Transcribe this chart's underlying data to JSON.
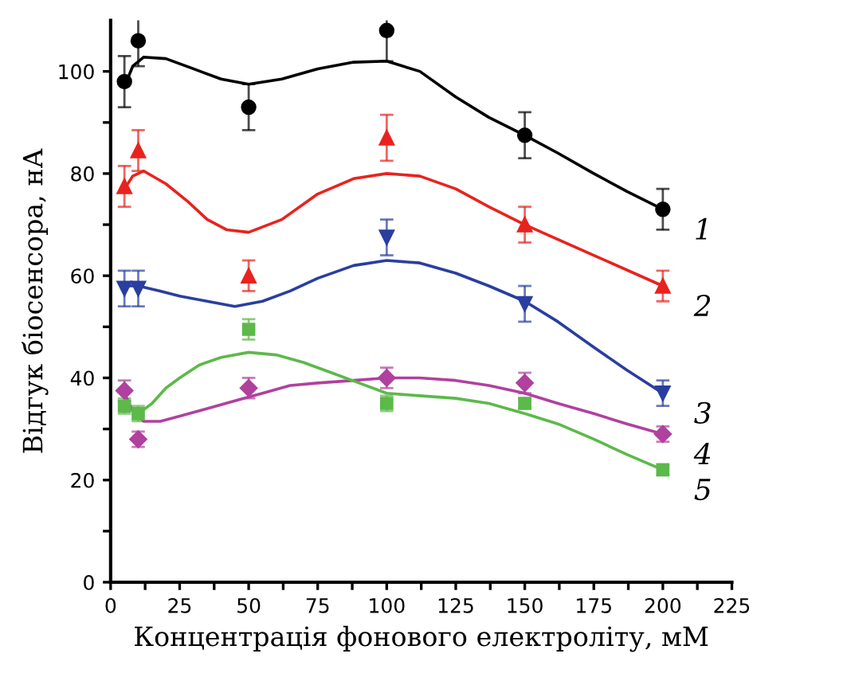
{
  "chart_data": {
    "type": "scatter",
    "xlabel": "Концентрація фонового електроліту, мМ",
    "ylabel": "Відгук біосенсора, нА",
    "x": [
      5,
      10,
      50,
      100,
      150,
      200
    ],
    "series": [
      {
        "name": "1",
        "color": "#000000",
        "marker": "circle",
        "values": [
          98,
          106,
          93,
          108,
          87.5,
          73
        ],
        "errors": [
          5,
          5,
          4.5,
          6,
          4.5,
          4
        ]
      },
      {
        "name": "2",
        "color": "#e8231e",
        "marker": "triangle",
        "values": [
          77.5,
          84.5,
          60,
          87,
          70,
          58
        ],
        "errors": [
          4,
          4,
          3,
          4.5,
          3.5,
          3
        ]
      },
      {
        "name": "3",
        "color": "#2a3ea0",
        "marker": "triangle_down",
        "values": [
          57.5,
          57.5,
          null,
          67.5,
          54.5,
          37
        ],
        "errors": [
          3.5,
          3.5,
          null,
          3.5,
          3.5,
          2.5
        ]
      },
      {
        "name": "4",
        "color": "#b0419e",
        "marker": "diamond",
        "values": [
          37.5,
          28,
          38,
          40,
          39,
          29
        ],
        "errors": [
          2,
          1.5,
          2,
          2,
          2,
          1.5
        ]
      },
      {
        "name": "5",
        "color": "#5cb94a",
        "marker": "square",
        "values": [
          34.5,
          33,
          49.5,
          35,
          35,
          22
        ],
        "errors": [
          1.5,
          1.5,
          2,
          1.5,
          1,
          1
        ]
      },
      {
        "type": "line",
        "color": "#000000",
        "x": [
          5,
          8,
          12,
          20,
          30,
          40,
          50,
          62,
          75,
          88,
          100,
          112,
          125,
          137,
          150,
          162,
          175,
          187,
          200
        ],
        "values": [
          97,
          101,
          102.8,
          102.5,
          100.5,
          98.5,
          97.5,
          98.5,
          100.5,
          101.8,
          102,
          100,
          95,
          91,
          87.5,
          84,
          80,
          76.5,
          73
        ]
      },
      {
        "type": "line",
        "color": "#e8231e",
        "x": [
          5,
          8,
          12,
          20,
          28,
          35,
          42,
          50,
          62,
          75,
          88,
          100,
          112,
          125,
          137,
          150,
          175,
          200
        ],
        "values": [
          77,
          79.5,
          80.5,
          78,
          74.5,
          71,
          69,
          68.5,
          71,
          76,
          79,
          80,
          79.5,
          77,
          73.5,
          70,
          64,
          58
        ]
      },
      {
        "type": "line",
        "color": "#2a3ea0",
        "x": [
          5,
          10,
          18,
          25,
          35,
          45,
          55,
          65,
          75,
          88,
          100,
          112,
          125,
          137,
          150,
          162,
          175,
          187,
          200
        ],
        "values": [
          58,
          58,
          57,
          56,
          55,
          54,
          55,
          57,
          59.5,
          62,
          63,
          62.5,
          60.5,
          58,
          55,
          51,
          46,
          41.5,
          37
        ]
      },
      {
        "type": "line",
        "color": "#b0419e",
        "x": [
          5,
          8,
          12,
          18,
          25,
          35,
          45,
          55,
          65,
          75,
          88,
          100,
          112,
          125,
          137,
          150,
          162,
          175,
          187,
          200
        ],
        "values": [
          37,
          33.5,
          31.5,
          31.5,
          32.5,
          34,
          35.5,
          37,
          38.5,
          39,
          39.5,
          40,
          40,
          39.5,
          38.5,
          37,
          35,
          33,
          31,
          29
        ]
      },
      {
        "type": "line",
        "color": "#5cb94a",
        "x": [
          10,
          15,
          20,
          25,
          32,
          40,
          50,
          60,
          70,
          80,
          90,
          100,
          112,
          125,
          137,
          150,
          162,
          175,
          187,
          200
        ],
        "values": [
          33,
          35,
          38,
          40,
          42.5,
          44,
          45,
          44.5,
          43,
          41,
          39,
          37,
          36.5,
          36,
          35,
          33,
          31,
          28,
          25,
          22
        ]
      }
    ],
    "xlim": [
      0,
      225
    ],
    "xticks": [
      0,
      {
        "value": 12.5,
        "label": null
      },
      25,
      {
        "value": 37.5,
        "label": null
      },
      50,
      {
        "value": 62.5,
        "label": null
      },
      75,
      {
        "value": 87.5,
        "label": null
      },
      100,
      {
        "value": 112.5,
        "label": null
      },
      125,
      {
        "value": 137.5,
        "label": null
      },
      150,
      {
        "value": 162.5,
        "label": null
      },
      175,
      {
        "value": 187.5,
        "label": null
      },
      200,
      {
        "value": 212.5,
        "label": null
      },
      225
    ],
    "ylim": [
      0,
      110
    ],
    "yticks": [
      0,
      {
        "value": 10,
        "label": null
      },
      20,
      {
        "value": 30,
        "label": null
      },
      40,
      {
        "value": 50,
        "label": null
      },
      60,
      {
        "value": 70,
        "label": null
      },
      80,
      {
        "value": 90,
        "label": null
      },
      100
    ],
    "grid": false,
    "legend": false
  }
}
